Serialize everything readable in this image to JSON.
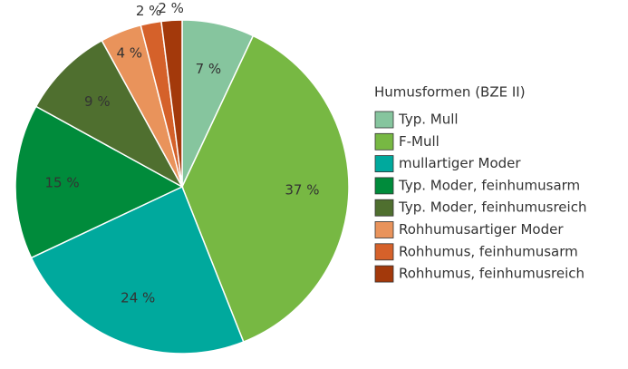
{
  "chart_data": {
    "type": "pie",
    "legend_title": "Humusformen (BZE II)",
    "categories": [
      "Typ. Mull",
      "F-Mull",
      "mullartiger Moder",
      "Typ. Moder, feinhumusarm",
      "Typ. Moder, feinhumusreich",
      "Rohhumusartiger Moder",
      "Rohhumus, feinhumusarm",
      "Rohhumus, feinhumusreich"
    ],
    "values": [
      7,
      37,
      24,
      15,
      9,
      4,
      2,
      2
    ],
    "value_labels": [
      "7 %",
      "37 %",
      "24 %",
      "15 %",
      "9 %",
      "4 %",
      "2 %",
      "2 %"
    ],
    "colors": [
      "#86c59e",
      "#77b843",
      "#00a99d",
      "#008b3b",
      "#4f6f2f",
      "#e9935b",
      "#d5612a",
      "#a3390b"
    ],
    "legend": "right"
  }
}
